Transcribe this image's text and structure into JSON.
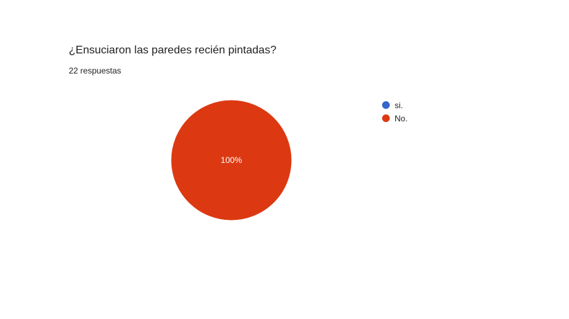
{
  "question": {
    "title": "¿Ensuciaron las paredes recién pintadas?",
    "response_count": "22 respuestas"
  },
  "chart_data": {
    "type": "pie",
    "title": "¿Ensuciaron las paredes recién pintadas?",
    "subtitle": "22 respuestas",
    "categories": [
      "si.",
      "No."
    ],
    "values": [
      0,
      100
    ],
    "slice_labels": [
      "",
      "100%"
    ],
    "colors": [
      "#3366cc",
      "#dc3912"
    ],
    "legend_position": "right"
  }
}
